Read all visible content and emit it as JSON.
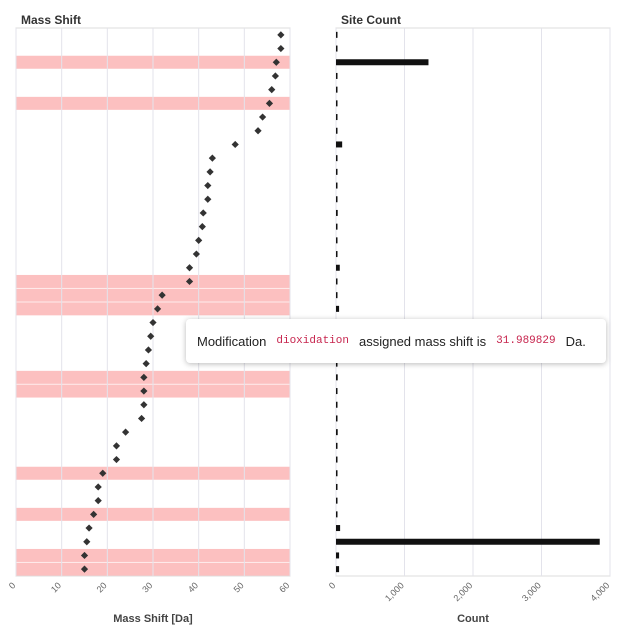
{
  "left_panel": {
    "title": "Mass Shift",
    "axis_title": "Mass Shift [Da]"
  },
  "right_panel": {
    "title": "Site Count",
    "axis_title": "Count"
  },
  "tooltip": {
    "prefix": "Modification",
    "modification": "dioxidation",
    "middle": "assigned mass shift is",
    "value": "31.989829",
    "suffix": "Da."
  },
  "colors": {
    "highlight": "#fcc0c0",
    "marker": "#333333",
    "bar": "#111111",
    "grid": "#e3e3eb"
  },
  "chart_data": [
    {
      "type": "scatter",
      "title": "Mass Shift",
      "xlabel": "Mass Shift [Da]",
      "xlim": [
        0,
        60
      ],
      "x_ticks": [
        "0",
        "10",
        "20",
        "30",
        "40",
        "50",
        "60"
      ],
      "values": [
        58.0,
        58.0,
        57.0,
        56.8,
        56.0,
        55.5,
        54.0,
        53.0,
        48.0,
        43.0,
        42.5,
        42.0,
        42.0,
        41.0,
        40.8,
        40.0,
        39.5,
        38.0,
        38.0,
        32.0,
        31.0,
        30.0,
        29.5,
        29.0,
        28.5,
        28.0,
        28.0,
        28.0,
        27.5,
        24.0,
        22.0,
        22.0,
        19.0,
        18.0,
        18.0,
        17.0,
        16.0,
        15.5,
        15.0,
        15.0
      ],
      "highlighted_rows": [
        2,
        5,
        18,
        19,
        20,
        25,
        26,
        32,
        35,
        38,
        39
      ]
    },
    {
      "type": "bar",
      "orientation": "horizontal",
      "title": "Site Count",
      "xlabel": "Count",
      "xlim": [
        0,
        4000
      ],
      "x_ticks": [
        "0",
        "1,000",
        "2,000",
        "3,000",
        "4,000"
      ],
      "values": [
        6,
        6,
        1350,
        6,
        6,
        6,
        6,
        6,
        90,
        6,
        6,
        6,
        6,
        25,
        6,
        6,
        6,
        55,
        6,
        6,
        45,
        6,
        6,
        6,
        6,
        25,
        6,
        6,
        6,
        25,
        6,
        6,
        6,
        6,
        6,
        6,
        60,
        3850,
        45,
        45
      ]
    }
  ]
}
